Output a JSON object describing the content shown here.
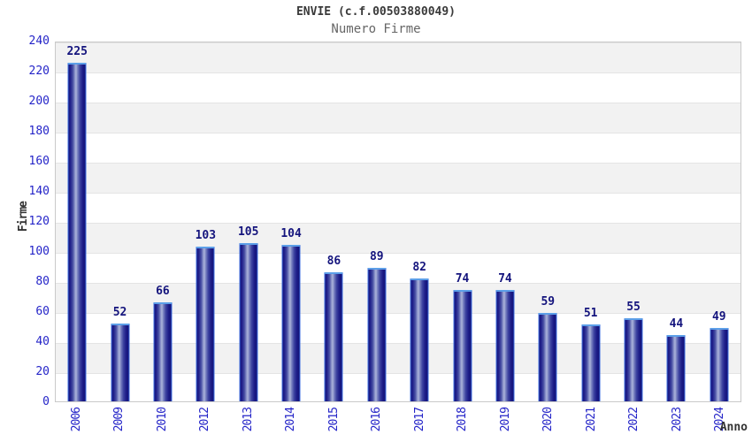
{
  "header": {
    "title": "ENVIE (c.f.00503880049)",
    "subtitle": "Numero Firme"
  },
  "axes": {
    "y_label": "Firme",
    "x_label": "Anno"
  },
  "colors": {
    "tick_label_blue": "#2424c8",
    "value_label_navy": "#14147d",
    "bar_dark_navy": "#15157d",
    "bar_highlight": "#aab2da",
    "bar_cap_blue": "#5c9fe8",
    "bar_edge_blue": "#3f6fe0",
    "band_gray": "#f2f2f2",
    "grid_line": "#e4e4e4",
    "plot_border": "#c9c9c9",
    "title_dark": "#3a3a3a",
    "subtitle_gray": "#666666"
  },
  "chart_data": {
    "type": "bar",
    "title": "ENVIE (c.f.00503880049)",
    "subtitle": "Numero Firme",
    "xlabel": "Anno",
    "ylabel": "Firme",
    "categories": [
      "2006",
      "2009",
      "2010",
      "2012",
      "2013",
      "2014",
      "2015",
      "2016",
      "2017",
      "2018",
      "2019",
      "2020",
      "2021",
      "2022",
      "2023",
      "2024"
    ],
    "values": [
      225,
      52,
      66,
      103,
      105,
      104,
      86,
      89,
      82,
      74,
      74,
      59,
      51,
      55,
      44,
      49
    ],
    "ylim": [
      0,
      240
    ],
    "ytick_step": 20,
    "yticks": [
      240,
      220,
      200,
      180,
      160,
      140,
      120,
      100,
      80,
      60,
      40,
      20,
      0
    ],
    "grid": true,
    "band_alternating": true,
    "legend": null,
    "bar_value_labels_shown": true
  }
}
